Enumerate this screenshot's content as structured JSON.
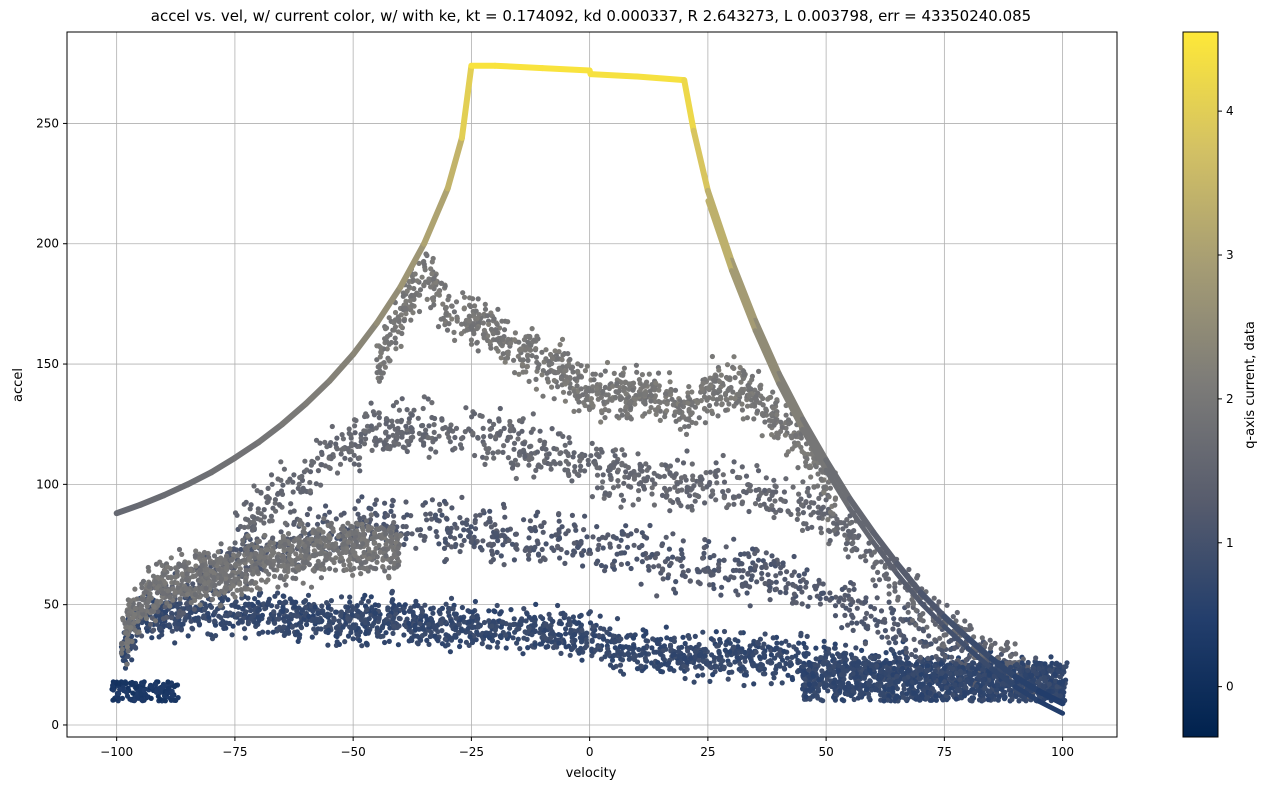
{
  "chart_data": {
    "type": "scatter",
    "title": "accel vs. vel, w/ current color, w/ with ke, kt = 0.174092, kd 0.000337, R 2.643273, L 0.003798, err = 43350240.085",
    "xlabel": "velocity",
    "ylabel": "accel",
    "xlim": [
      -110.5,
      111.5
    ],
    "ylim": [
      -5,
      288
    ],
    "x_ticks": [
      -100,
      -75,
      -50,
      -25,
      0,
      25,
      50,
      75,
      100
    ],
    "y_ticks": [
      0,
      50,
      100,
      150,
      200,
      250
    ],
    "grid": true,
    "colorbar": {
      "label": "q-axis current, data",
      "range": [
        -0.35,
        4.55
      ],
      "ticks": [
        0,
        1,
        2,
        3,
        4
      ],
      "colormap": "cividis",
      "stops": [
        "#00224e",
        "#233e6c",
        "#575c6d",
        "#7c7b78",
        "#a59c74",
        "#d3c164",
        "#fee838"
      ]
    },
    "series": [
      {
        "kind": "model_curve",
        "points": [
          [
            -100,
            88,
            1.6
          ],
          [
            -95,
            91.5,
            1.65
          ],
          [
            -90,
            95.5,
            1.7
          ],
          [
            -85,
            100,
            1.75
          ],
          [
            -80,
            105,
            1.8
          ],
          [
            -75,
            111,
            1.85
          ],
          [
            -70,
            117.5,
            1.9
          ],
          [
            -65,
            125,
            2.0
          ],
          [
            -60,
            133.5,
            2.1
          ],
          [
            -55,
            143,
            2.2
          ],
          [
            -50,
            154,
            2.3
          ],
          [
            -45,
            167,
            2.45
          ],
          [
            -40,
            182,
            2.65
          ],
          [
            -35,
            200,
            2.9
          ],
          [
            -30,
            223,
            3.25
          ],
          [
            -27,
            244,
            3.6
          ],
          [
            -25,
            274,
            4.45
          ],
          [
            -20,
            274,
            4.45
          ],
          [
            -10,
            273,
            4.45
          ],
          [
            0,
            272,
            4.45
          ],
          [
            0.2,
            270.5,
            4.4
          ],
          [
            10,
            269.5,
            4.4
          ],
          [
            20,
            268,
            4.4
          ],
          [
            22,
            247,
            4.05
          ],
          [
            25,
            222,
            3.6
          ],
          [
            30,
            193,
            3.1
          ],
          [
            35,
            168,
            2.7
          ],
          [
            40,
            146,
            2.35
          ],
          [
            45,
            127,
            2.1
          ],
          [
            50,
            110,
            1.85
          ],
          [
            55,
            94,
            1.65
          ],
          [
            60,
            80,
            1.5
          ],
          [
            65,
            67,
            1.35
          ],
          [
            70,
            55,
            1.2
          ],
          [
            75,
            45,
            1.05
          ],
          [
            80,
            36,
            0.9
          ],
          [
            85,
            27.5,
            0.75
          ],
          [
            90,
            20,
            0.6
          ],
          [
            95,
            14,
            0.5
          ],
          [
            100,
            9,
            0.4
          ]
        ]
      },
      {
        "kind": "measured_bands",
        "bands": [
          {
            "level": 0.75,
            "points": [
              [
                -99,
                30
              ],
              [
                -95,
                43
              ],
              [
                -85,
                46
              ],
              [
                -75,
                46
              ],
              [
                -60,
                44
              ],
              [
                -40,
                43
              ],
              [
                -25,
                41
              ],
              [
                -10,
                39
              ],
              [
                0,
                36
              ],
              [
                10,
                30
              ],
              [
                25,
                29
              ],
              [
                40,
                27
              ],
              [
                55,
                25
              ],
              [
                70,
                22
              ],
              [
                85,
                19
              ],
              [
                100,
                17
              ]
            ]
          },
          {
            "level": 1.2,
            "points": [
              [
                -95,
                48
              ],
              [
                -85,
                55
              ],
              [
                -75,
                68
              ],
              [
                -65,
                75
              ],
              [
                -55,
                79
              ],
              [
                -45,
                83
              ],
              [
                -35,
                82
              ],
              [
                -20,
                80
              ],
              [
                -5,
                77
              ],
              [
                10,
                70
              ],
              [
                25,
                66
              ],
              [
                40,
                62
              ],
              [
                52,
                52
              ],
              [
                65,
                40
              ],
              [
                80,
                28
              ],
              [
                95,
                18
              ]
            ]
          },
          {
            "level": 1.6,
            "points": [
              [
                -75,
                80
              ],
              [
                -65,
                95
              ],
              [
                -55,
                112
              ],
              [
                -45,
                122
              ],
              [
                -35,
                124
              ],
              [
                -20,
                120
              ],
              [
                -5,
                112
              ],
              [
                10,
                102
              ],
              [
                25,
                100
              ],
              [
                40,
                95
              ],
              [
                52,
                85
              ],
              [
                65,
                60
              ],
              [
                75,
                42
              ],
              [
                85,
                30
              ],
              [
                92,
                22
              ]
            ]
          },
          {
            "level": 2.0,
            "points": [
              [
                -45,
                150
              ],
              [
                -38,
                177
              ],
              [
                -35,
                188
              ],
              [
                -30,
                172
              ],
              [
                -20,
                163
              ],
              [
                -10,
                150
              ],
              [
                0,
                140
              ],
              [
                10,
                137
              ],
              [
                20,
                132
              ],
              [
                30,
                143
              ],
              [
                38,
                130
              ],
              [
                45,
                115
              ],
              [
                52,
                95
              ]
            ]
          },
          {
            "level": 1.9,
            "points": [
              [
                -99,
                35
              ],
              [
                -95,
                50
              ],
              [
                -90,
                60
              ],
              [
                -80,
                62
              ],
              [
                -70,
                68
              ],
              [
                -60,
                72
              ],
              [
                -50,
                75
              ],
              [
                -40,
                73
              ]
            ]
          }
        ]
      }
    ]
  }
}
